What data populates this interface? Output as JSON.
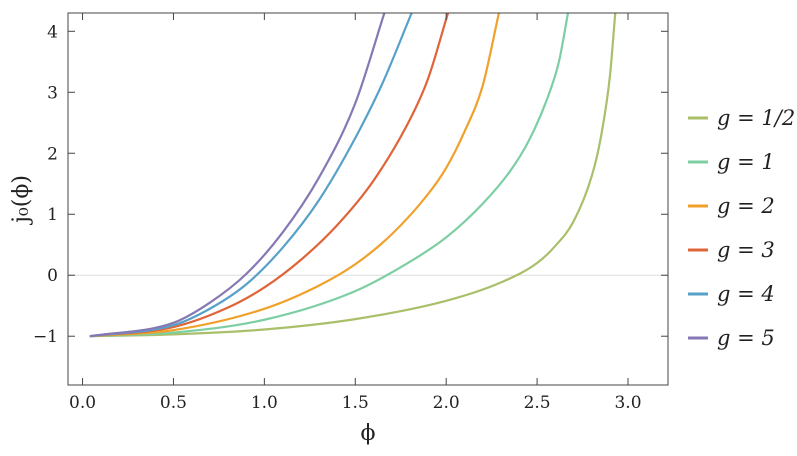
{
  "chart_data": {
    "type": "line",
    "xlabel": "ϕ",
    "ylabel": "j₀(ϕ)",
    "xlim": [
      -0.08,
      3.22
    ],
    "ylim": [
      -1.8,
      4.3
    ],
    "x_ticks": [
      0.0,
      0.5,
      1.0,
      1.5,
      2.0,
      2.5,
      3.0
    ],
    "x_tick_labels": [
      "0.0",
      "0.5",
      "1.0",
      "1.5",
      "2.0",
      "2.5",
      "3.0"
    ],
    "y_ticks": [
      -1,
      0,
      1,
      2,
      3,
      4
    ],
    "y_tick_labels": [
      "−1",
      "0",
      "1",
      "2",
      "3",
      "4"
    ],
    "grid": false,
    "reference_line_y": 0,
    "legend_position": "right",
    "series": [
      {
        "name": "g = 1/2",
        "color": "#a9bf6a",
        "x": [
          0.04,
          0.5,
          1.0,
          1.5,
          2.0,
          2.3,
          2.5,
          2.6,
          2.7,
          2.8,
          2.85,
          2.9,
          2.93
        ],
        "y": [
          -1.0,
          -0.97,
          -0.89,
          -0.72,
          -0.42,
          -0.12,
          0.2,
          0.48,
          0.88,
          1.62,
          2.25,
          3.25,
          4.3
        ]
      },
      {
        "name": "g = 1",
        "color": "#7dcfa3",
        "x": [
          0.04,
          0.5,
          1.0,
          1.5,
          1.8,
          2.0,
          2.2,
          2.35,
          2.45,
          2.55,
          2.62,
          2.67
        ],
        "y": [
          -1.0,
          -0.94,
          -0.73,
          -0.26,
          0.22,
          0.62,
          1.17,
          1.7,
          2.18,
          2.85,
          3.5,
          4.3
        ]
      },
      {
        "name": "g = 2",
        "color": "#f0a12c",
        "x": [
          0.04,
          0.5,
          1.0,
          1.3,
          1.5,
          1.7,
          1.9,
          2.0,
          2.1,
          2.2,
          2.29
        ],
        "y": [
          -1.0,
          -0.9,
          -0.55,
          -0.17,
          0.18,
          0.67,
          1.33,
          1.76,
          2.35,
          3.1,
          4.3
        ]
      },
      {
        "name": "g = 3",
        "color": "#df6439",
        "x": [
          0.04,
          0.5,
          0.8,
          1.0,
          1.2,
          1.4,
          1.6,
          1.8,
          1.9,
          2.01
        ],
        "y": [
          -1.0,
          -0.85,
          -0.53,
          -0.2,
          0.25,
          0.82,
          1.55,
          2.55,
          3.22,
          4.3
        ]
      },
      {
        "name": "g = 4",
        "color": "#57a1c9",
        "x": [
          0.04,
          0.5,
          0.7,
          0.9,
          1.1,
          1.3,
          1.5,
          1.65,
          1.81
        ],
        "y": [
          -1.0,
          -0.82,
          -0.55,
          -0.15,
          0.45,
          1.23,
          2.25,
          3.15,
          4.3
        ]
      },
      {
        "name": "g = 5",
        "color": "#8678b4",
        "x": [
          0.04,
          0.5,
          0.7,
          0.9,
          1.1,
          1.3,
          1.5,
          1.66
        ],
        "y": [
          -1.0,
          -0.78,
          -0.45,
          0.02,
          0.7,
          1.6,
          2.82,
          4.3
        ]
      }
    ]
  }
}
